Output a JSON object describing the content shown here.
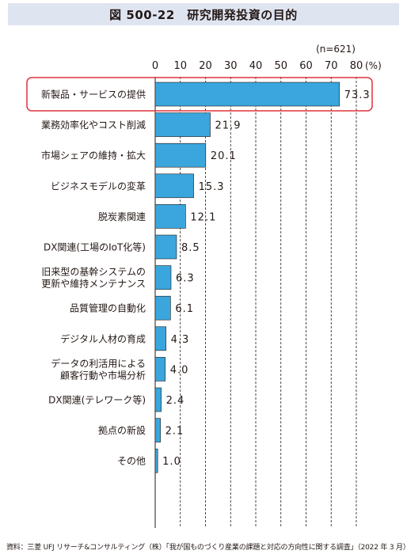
{
  "chart_data": {
    "type": "bar",
    "orientation": "horizontal",
    "title": "図 500-22　研究開発投資の目的",
    "note": "(n=621)",
    "unit": "(%)",
    "xlim": [
      0,
      80
    ],
    "ticks": [
      0,
      10,
      20,
      30,
      40,
      50,
      60,
      70,
      80
    ],
    "grid": "vertical dashed",
    "bar_color": "#3aa6dd",
    "highlight_color": "#e0323c",
    "highlighted_index": 0,
    "categories": [
      [
        "新製品・サービスの提供"
      ],
      [
        "業務効率化やコスト削減"
      ],
      [
        "市場シェアの維持・拡大"
      ],
      [
        "ビジネスモデルの変革"
      ],
      [
        "脱炭素関連"
      ],
      [
        "DX関連(工場のIoT化等)"
      ],
      [
        "旧来型の基幹システムの",
        "更新や維持メンテナンス"
      ],
      [
        "品質管理の自動化"
      ],
      [
        "デジタル人材の育成"
      ],
      [
        "データの利活用による",
        "顧客行動や市場分析"
      ],
      [
        "DX関連(テレワーク等)"
      ],
      [
        "拠点の新設"
      ],
      [
        "その他"
      ]
    ],
    "values": [
      73.3,
      21.9,
      20.1,
      15.3,
      12.1,
      8.5,
      6.3,
      6.1,
      4.3,
      4.0,
      2.4,
      2.1,
      1.0
    ],
    "value_labels": [
      "73.3",
      "21.9",
      "20.1",
      "15.3",
      "12.1",
      "8.5",
      "6.3",
      "6.1",
      "4.3",
      "4.0",
      "2.4",
      "2.1",
      "1.0"
    ]
  },
  "source": "資料：三菱 UFJ リサーチ&コンサルティング（株）「我が国ものづくり産業の課題と対応の方向性に関する調査」（2022 年 3 月）"
}
